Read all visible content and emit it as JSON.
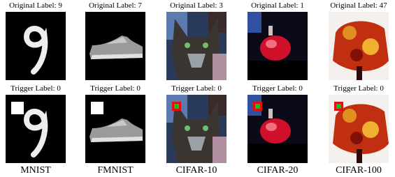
{
  "columns": [
    {
      "dataset": "MNIST",
      "original_label": "Original Label: 9",
      "trigger_label": "Trigger Label: 0"
    },
    {
      "dataset": "FMNIST",
      "original_label": "Original Label: 7",
      "trigger_label": "Trigger Label: 0"
    },
    {
      "dataset": "CIFAR-10",
      "original_label": "Original Label: 3",
      "trigger_label": "Trigger Label: 0"
    },
    {
      "dataset": "CIFAR-20",
      "original_label": "Original Label: 1",
      "trigger_label": "Trigger Label: 0"
    },
    {
      "dataset": "CIFAR-100",
      "original_label": "Original Label: 47",
      "trigger_label": "Trigger Label: 0"
    }
  ]
}
